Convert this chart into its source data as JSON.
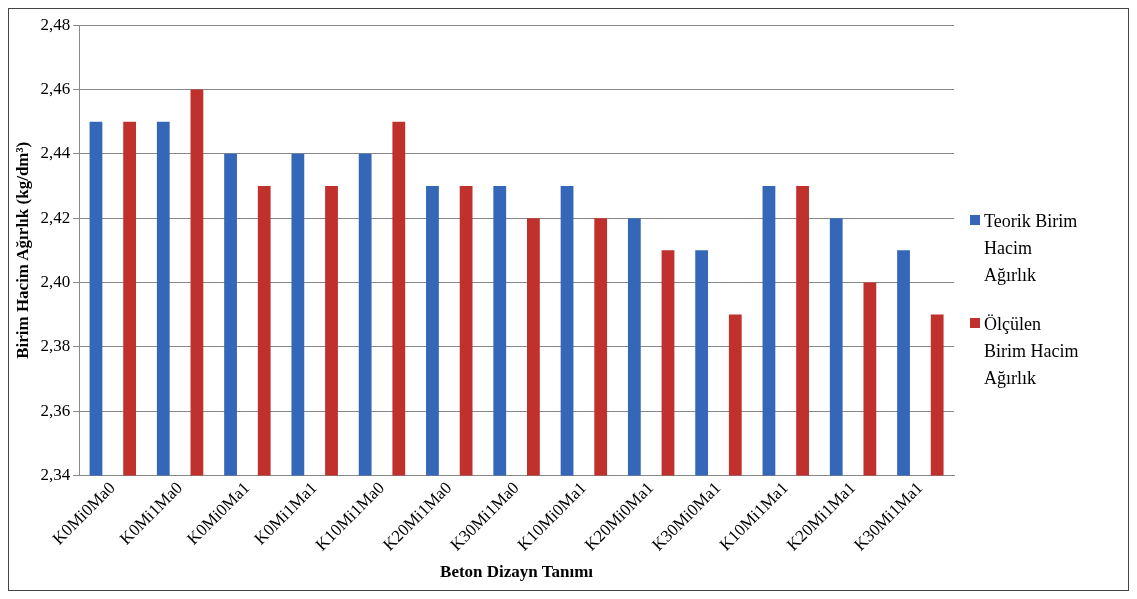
{
  "chart_data": {
    "type": "bar",
    "xlabel": "Beton Dizayn Tanımı",
    "ylabel": "Birim Hacim Ağırlık (kg/dm³)",
    "categories": [
      "K0Mi0Ma0",
      "K0Mi1Ma0",
      "K0Mi0Ma1",
      "K0Mi1Ma1",
      "K10Mi1Ma0",
      "K20Mi1Ma0",
      "K30Mi1Ma0",
      "K10Mi0Ma1",
      "K20Mi0Ma1",
      "K30Mi0Ma1",
      "K10Mi1Ma1",
      "K20Mi1Ma1",
      "K30Mi1Ma1"
    ],
    "series": [
      {
        "name": "Teorik Birim Hacim Ağırlık",
        "color": "#3567b8",
        "values": [
          2.45,
          2.45,
          2.44,
          2.44,
          2.44,
          2.43,
          2.43,
          2.43,
          2.42,
          2.41,
          2.43,
          2.42,
          2.41
        ]
      },
      {
        "name": "Ölçülen Birim Hacim Ağırlık",
        "color": "#c0302c",
        "values": [
          2.45,
          2.46,
          2.43,
          2.43,
          2.45,
          2.43,
          2.42,
          2.42,
          2.41,
          2.39,
          2.43,
          2.4,
          2.39
        ]
      }
    ],
    "ylim": [
      2.34,
      2.48
    ],
    "yticks": [
      {
        "value": 2.34,
        "label": "2,34"
      },
      {
        "value": 2.36,
        "label": "2,36"
      },
      {
        "value": 2.38,
        "label": "2,38"
      },
      {
        "value": 2.4,
        "label": "2,40"
      },
      {
        "value": 2.42,
        "label": "2,42"
      },
      {
        "value": 2.44,
        "label": "2,44"
      },
      {
        "value": 2.46,
        "label": "2,46"
      },
      {
        "value": 2.48,
        "label": "2,48"
      }
    ],
    "grid": "y",
    "legend": "right"
  }
}
